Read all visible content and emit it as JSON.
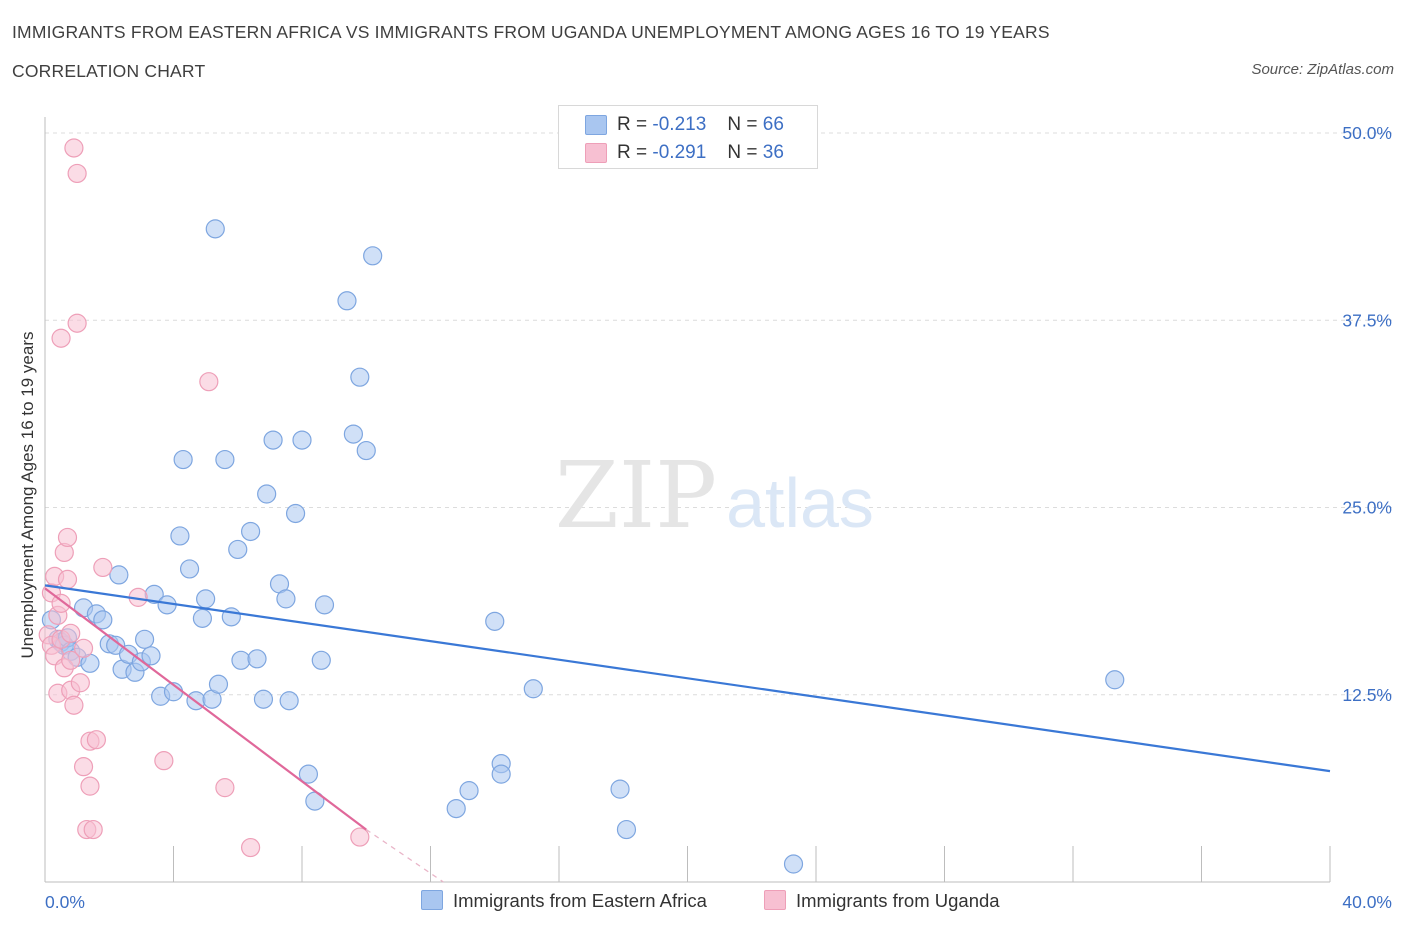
{
  "title": "IMMIGRANTS FROM EASTERN AFRICA VS IMMIGRANTS FROM UGANDA UNEMPLOYMENT AMONG AGES 16 TO 19 YEARS",
  "subtitle": "CORRELATION CHART",
  "source": "Source: ZipAtlas.com",
  "watermark": {
    "zip": "ZIP",
    "atlas": "atlas"
  },
  "legend": {
    "r_label": "R =",
    "n_label": "N =",
    "series": [
      {
        "name": "Immigrants from Eastern Africa",
        "r": "-0.213",
        "n": "66",
        "color": "#a9c6f0",
        "stroke": "#7ea6e0"
      },
      {
        "name": "Immigrants from Uganda",
        "r": "-0.291",
        "n": "36",
        "color": "#f7c0d2",
        "stroke": "#ee9fb8"
      }
    ]
  },
  "chart_data": {
    "type": "scatter",
    "ylabel": "Unemployment Among Ages 16 to 19 years",
    "xlim": [
      0,
      40
    ],
    "ylim": [
      0,
      50
    ],
    "x_tick_labels": [
      {
        "value": 0,
        "label": "0.0%"
      },
      {
        "value": 40,
        "label": "40.0%"
      }
    ],
    "y_tick_labels": [
      {
        "value": 12.5,
        "label": "12.5%"
      },
      {
        "value": 25,
        "label": "25.0%"
      },
      {
        "value": 37.5,
        "label": "37.5%"
      },
      {
        "value": 50,
        "label": "50.0%"
      }
    ],
    "grid": true,
    "series": [
      {
        "name": "Immigrants from Eastern Africa",
        "color": "#3a78d6",
        "trend": {
          "x": [
            0,
            40
          ],
          "y": [
            19.8,
            7.4
          ]
        },
        "points": [
          [
            0.2,
            17.5
          ],
          [
            0.4,
            16.2
          ],
          [
            0.5,
            16.0
          ],
          [
            0.6,
            15.8
          ],
          [
            0.7,
            16.3
          ],
          [
            0.8,
            15.4
          ],
          [
            1.0,
            15.0
          ],
          [
            1.2,
            18.3
          ],
          [
            1.4,
            14.6
          ],
          [
            1.6,
            17.9
          ],
          [
            1.8,
            17.5
          ],
          [
            2.0,
            15.9
          ],
          [
            2.2,
            15.8
          ],
          [
            2.3,
            20.5
          ],
          [
            2.4,
            14.2
          ],
          [
            2.6,
            15.2
          ],
          [
            2.8,
            14.0
          ],
          [
            3.0,
            14.7
          ],
          [
            3.1,
            16.2
          ],
          [
            3.3,
            15.1
          ],
          [
            3.4,
            19.2
          ],
          [
            3.6,
            12.4
          ],
          [
            3.8,
            18.5
          ],
          [
            4.0,
            12.7
          ],
          [
            4.2,
            23.1
          ],
          [
            4.3,
            28.2
          ],
          [
            4.5,
            20.9
          ],
          [
            4.7,
            12.1
          ],
          [
            4.9,
            17.6
          ],
          [
            5.0,
            18.9
          ],
          [
            5.2,
            12.2
          ],
          [
            5.3,
            43.6
          ],
          [
            5.4,
            13.2
          ],
          [
            5.6,
            28.2
          ],
          [
            5.8,
            17.7
          ],
          [
            6.0,
            22.2
          ],
          [
            6.1,
            14.8
          ],
          [
            6.4,
            23.4
          ],
          [
            6.6,
            14.9
          ],
          [
            6.8,
            12.2
          ],
          [
            6.9,
            25.9
          ],
          [
            7.1,
            29.5
          ],
          [
            7.3,
            19.9
          ],
          [
            7.5,
            18.9
          ],
          [
            7.6,
            12.1
          ],
          [
            7.8,
            24.6
          ],
          [
            8.0,
            29.5
          ],
          [
            8.2,
            7.2
          ],
          [
            8.4,
            5.4
          ],
          [
            8.6,
            14.8
          ],
          [
            8.7,
            18.5
          ],
          [
            9.4,
            38.8
          ],
          [
            9.6,
            29.9
          ],
          [
            9.8,
            33.7
          ],
          [
            10.0,
            28.8
          ],
          [
            10.2,
            41.8
          ],
          [
            12.8,
            4.9
          ],
          [
            13.2,
            6.1
          ],
          [
            14.0,
            17.4
          ],
          [
            14.2,
            7.9
          ],
          [
            14.2,
            7.2
          ],
          [
            15.2,
            12.9
          ],
          [
            17.9,
            6.2
          ],
          [
            18.1,
            3.5
          ],
          [
            23.3,
            1.2
          ],
          [
            33.3,
            13.5
          ]
        ]
      },
      {
        "name": "Immigrants from Uganda",
        "color": "#e0689a",
        "trend": {
          "x": [
            0,
            10.0
          ],
          "y": [
            19.6,
            3.5
          ]
        },
        "trend_dashed": {
          "x": [
            10.0,
            12.4
          ],
          "y": [
            3.5,
            0
          ]
        },
        "points": [
          [
            0.1,
            16.5
          ],
          [
            0.2,
            15.8
          ],
          [
            0.2,
            19.3
          ],
          [
            0.3,
            20.4
          ],
          [
            0.3,
            15.1
          ],
          [
            0.4,
            17.8
          ],
          [
            0.4,
            12.6
          ],
          [
            0.5,
            16.2
          ],
          [
            0.5,
            18.6
          ],
          [
            0.5,
            36.3
          ],
          [
            0.6,
            22.0
          ],
          [
            0.6,
            14.3
          ],
          [
            0.7,
            23.0
          ],
          [
            0.7,
            20.2
          ],
          [
            0.8,
            16.6
          ],
          [
            0.8,
            14.8
          ],
          [
            0.8,
            12.8
          ],
          [
            0.9,
            11.8
          ],
          [
            0.9,
            49.0
          ],
          [
            1.0,
            47.3
          ],
          [
            1.0,
            37.3
          ],
          [
            1.1,
            13.3
          ],
          [
            1.2,
            7.7
          ],
          [
            1.2,
            15.6
          ],
          [
            1.3,
            3.5
          ],
          [
            1.4,
            9.4
          ],
          [
            1.4,
            6.4
          ],
          [
            1.5,
            3.5
          ],
          [
            1.6,
            9.5
          ],
          [
            1.8,
            21.0
          ],
          [
            2.9,
            19.0
          ],
          [
            3.7,
            8.1
          ],
          [
            5.1,
            33.4
          ],
          [
            5.6,
            6.3
          ],
          [
            6.4,
            2.3
          ],
          [
            9.8,
            3.0
          ]
        ]
      }
    ]
  }
}
